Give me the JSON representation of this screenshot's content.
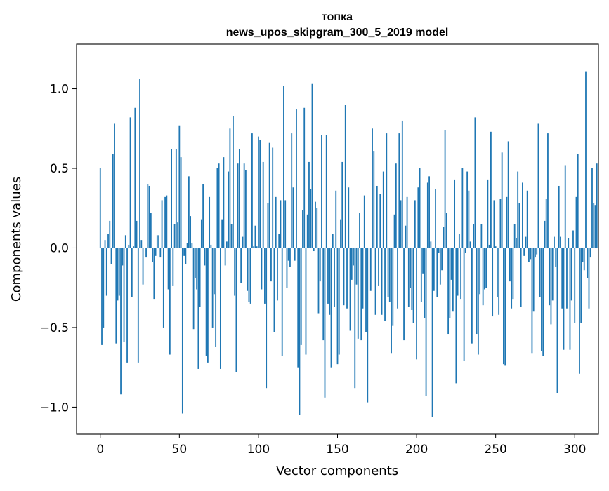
{
  "chart_data": {
    "type": "bar",
    "title": [
      "топка",
      "news_upos_skipgram_300_5_2019 model"
    ],
    "xlabel": "Vector components",
    "ylabel": "Components values",
    "xlim": [
      -15,
      315
    ],
    "ylim": [
      -1.17,
      1.28
    ],
    "xticks": [
      0,
      50,
      100,
      150,
      200,
      250,
      300
    ],
    "yticks": [
      -1.0,
      -0.5,
      0.0,
      0.5,
      1.0
    ],
    "ytick_labels": [
      "−1.0",
      "−0.5",
      "0.0",
      "0.5",
      "1.0"
    ],
    "grid": false,
    "bar_color": "#1f77b4",
    "values": [
      0.5,
      -0.61,
      -0.5,
      0.05,
      -0.3,
      0.09,
      0.17,
      -0.1,
      0.59,
      0.78,
      -0.6,
      -0.33,
      -0.3,
      -0.92,
      -0.11,
      -0.59,
      0.08,
      -0.72,
      0.02,
      0.82,
      -0.31,
      0.01,
      0.88,
      0.17,
      -0.72,
      1.06,
      0.05,
      -0.23,
      0.0,
      -0.06,
      0.4,
      0.39,
      0.22,
      -0.09,
      -0.32,
      -0.05,
      0.08,
      0.08,
      -0.06,
      0.3,
      -0.5,
      0.32,
      0.33,
      -0.26,
      -0.67,
      0.62,
      -0.24,
      0.15,
      0.62,
      0.16,
      0.77,
      0.57,
      -1.04,
      -0.05,
      -0.1,
      0.03,
      0.45,
      0.2,
      0.03,
      -0.51,
      -0.19,
      -0.26,
      -0.76,
      -0.37,
      0.18,
      0.4,
      -0.11,
      -0.68,
      -0.72,
      0.32,
      0.02,
      -0.5,
      -0.29,
      -0.62,
      0.5,
      0.53,
      -0.76,
      0.18,
      0.57,
      -0.11,
      0.04,
      0.48,
      0.75,
      0.15,
      0.83,
      -0.3,
      -0.78,
      0.53,
      0.62,
      -0.22,
      0.07,
      0.53,
      0.49,
      -0.27,
      -0.34,
      -0.35,
      0.72,
      0.01,
      0.14,
      0.01,
      0.7,
      0.68,
      -0.26,
      0.54,
      -0.35,
      -0.88,
      0.28,
      0.66,
      -0.21,
      0.63,
      -0.53,
      0.32,
      -0.33,
      0.09,
      0.3,
      -0.68,
      1.02,
      0.3,
      -0.25,
      -0.08,
      -0.12,
      0.72,
      0.38,
      -0.08,
      0.87,
      -0.75,
      -1.05,
      -0.61,
      0.24,
      0.88,
      -0.67,
      0.21,
      0.54,
      0.37,
      1.03,
      -0.02,
      0.29,
      0.25,
      -0.41,
      -0.21,
      0.71,
      -0.58,
      -0.94,
      0.71,
      -0.35,
      -0.42,
      -0.75,
      0.09,
      -0.37,
      0.36,
      -0.73,
      -0.67,
      0.18,
      0.54,
      -0.36,
      0.9,
      -0.38,
      0.38,
      -0.52,
      -0.2,
      -0.11,
      -0.88,
      -0.23,
      -0.57,
      0.22,
      -0.58,
      -0.38,
      0.33,
      -0.53,
      -0.97,
      0.0,
      -0.27,
      0.75,
      0.61,
      -0.42,
      0.39,
      -0.24,
      0.34,
      -0.42,
      0.48,
      -0.46,
      0.72,
      -0.31,
      -0.34,
      -0.66,
      -0.49,
      0.21,
      0.53,
      -0.38,
      0.72,
      0.3,
      0.8,
      -0.58,
      0.14,
      0.32,
      -0.37,
      -0.25,
      -0.39,
      -0.47,
      0.3,
      -0.7,
      0.38,
      0.5,
      -0.34,
      -0.16,
      -0.44,
      -0.93,
      0.41,
      0.45,
      0.04,
      -1.06,
      -0.27,
      0.37,
      -0.31,
      -0.03,
      -0.23,
      -0.14,
      0.13,
      0.74,
      0.22,
      -0.54,
      -0.44,
      -0.2,
      -0.4,
      0.43,
      -0.85,
      -0.3,
      0.09,
      -0.32,
      0.5,
      -0.71,
      -0.03,
      0.48,
      0.36,
      0.04,
      -0.6,
      0.15,
      0.82,
      -0.54,
      -0.67,
      -0.29,
      0.15,
      -0.36,
      -0.26,
      -0.25,
      0.43,
      0.02,
      0.73,
      -0.43,
      0.3,
      0.01,
      -0.31,
      -0.42,
      0.31,
      0.6,
      -0.73,
      -0.74,
      0.32,
      0.67,
      -0.21,
      -0.38,
      -0.32,
      0.15,
      0.06,
      0.48,
      0.28,
      -0.37,
      0.41,
      -0.05,
      0.07,
      0.36,
      -0.09,
      -0.07,
      -0.66,
      -0.4,
      -0.06,
      -0.04,
      0.78,
      -0.31,
      -0.65,
      -0.68,
      0.17,
      0.31,
      0.72,
      -0.36,
      -0.48,
      -0.33,
      0.07,
      -0.12,
      -0.91,
      0.39,
      0.07,
      -0.38,
      -0.64,
      0.52,
      -0.38,
      0.06,
      -0.64,
      -0.33,
      0.11,
      -0.47,
      0.32,
      0.59,
      -0.79,
      -0.47,
      -0.09,
      -0.14,
      1.11,
      -0.19,
      -0.38,
      -0.06,
      0.5,
      0.28,
      0.27,
      0.53
    ]
  }
}
